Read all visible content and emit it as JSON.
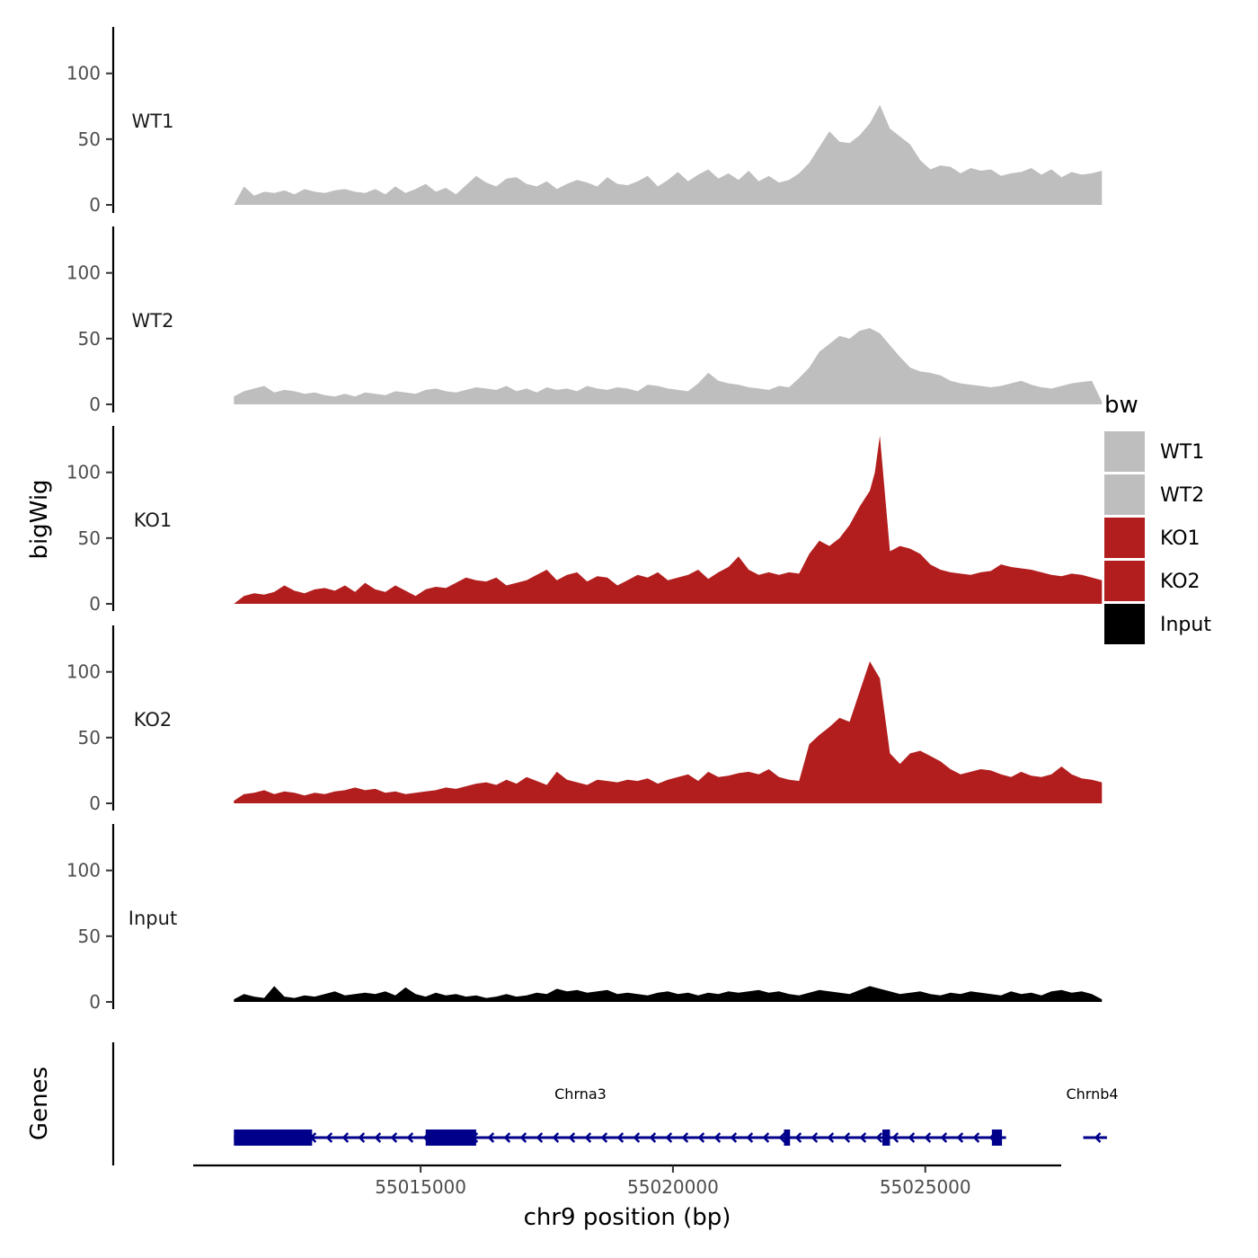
{
  "chart_data": {
    "type": "area",
    "ylabel": "bigWig",
    "xlabel": "chr9 position (bp)",
    "genes_panel_label": "Genes",
    "x_range": [
      55011300,
      55028500
    ],
    "ylim": [
      0,
      135
    ],
    "y_ticks": [
      0,
      50,
      100
    ],
    "x_ticks": [
      55015000,
      55020000,
      55025000
    ],
    "legend": {
      "title": "bw",
      "entries": [
        {
          "name": "WT1",
          "color": "#bebebe"
        },
        {
          "name": "WT2",
          "color": "#bebebe"
        },
        {
          "name": "KO1",
          "color": "#b21e1e"
        },
        {
          "name": "KO2",
          "color": "#b21e1e"
        },
        {
          "name": "Input",
          "color": "#000000"
        }
      ]
    },
    "tracks": [
      {
        "name": "WT1",
        "color": "#bebebe",
        "x": [
          55011300,
          55011500,
          55011700,
          55011900,
          55012100,
          55012300,
          55012500,
          55012700,
          55012900,
          55013100,
          55013300,
          55013500,
          55013700,
          55013900,
          55014100,
          55014300,
          55014500,
          55014700,
          55014900,
          55015100,
          55015300,
          55015500,
          55015700,
          55015900,
          55016100,
          55016300,
          55016500,
          55016700,
          55016900,
          55017100,
          55017300,
          55017500,
          55017700,
          55017900,
          55018100,
          55018300,
          55018500,
          55018700,
          55018900,
          55019100,
          55019300,
          55019500,
          55019700,
          55019900,
          55020100,
          55020300,
          55020500,
          55020700,
          55020900,
          55021100,
          55021300,
          55021500,
          55021700,
          55021900,
          55022100,
          55022300,
          55022500,
          55022700,
          55022900,
          55023100,
          55023300,
          55023500,
          55023700,
          55023900,
          55024100,
          55024300,
          55024500,
          55024700,
          55024900,
          55025100,
          55025300,
          55025500,
          55025700,
          55025900,
          55026100,
          55026300,
          55026500,
          55026700,
          55026900,
          55027100,
          55027300,
          55027500,
          55027700,
          55027900,
          55028100,
          55028300,
          55028500
        ],
        "values": [
          0,
          14,
          7,
          10,
          9,
          11,
          8,
          12,
          10,
          9,
          11,
          12,
          10,
          9,
          12,
          8,
          14,
          9,
          12,
          16,
          10,
          13,
          8,
          15,
          22,
          17,
          14,
          20,
          21,
          16,
          14,
          18,
          12,
          16,
          19,
          17,
          14,
          21,
          16,
          15,
          18,
          22,
          14,
          19,
          25,
          18,
          23,
          27,
          20,
          24,
          19,
          26,
          18,
          22,
          17,
          19,
          24,
          32,
          44,
          56,
          48,
          47,
          53,
          62,
          76,
          58,
          52,
          46,
          34,
          27,
          30,
          29,
          24,
          28,
          26,
          27,
          22,
          24,
          25,
          28,
          23,
          27,
          21,
          25,
          23,
          24,
          26
        ]
      },
      {
        "name": "WT2",
        "color": "#bebebe",
        "x": [
          55011300,
          55011500,
          55011700,
          55011900,
          55012100,
          55012300,
          55012500,
          55012700,
          55012900,
          55013100,
          55013300,
          55013500,
          55013700,
          55013900,
          55014100,
          55014300,
          55014500,
          55014700,
          55014900,
          55015100,
          55015300,
          55015500,
          55015700,
          55015900,
          55016100,
          55016300,
          55016500,
          55016700,
          55016900,
          55017100,
          55017300,
          55017500,
          55017700,
          55017900,
          55018100,
          55018300,
          55018500,
          55018700,
          55018900,
          55019100,
          55019300,
          55019500,
          55019700,
          55019900,
          55020100,
          55020300,
          55020500,
          55020700,
          55020900,
          55021100,
          55021300,
          55021500,
          55021700,
          55021900,
          55022100,
          55022300,
          55022500,
          55022700,
          55022900,
          55023100,
          55023300,
          55023500,
          55023700,
          55023900,
          55024100,
          55024300,
          55024500,
          55024700,
          55024900,
          55025100,
          55025300,
          55025500,
          55025700,
          55025900,
          55026100,
          55026300,
          55026500,
          55026700,
          55026900,
          55027100,
          55027300,
          55027500,
          55027700,
          55027900,
          55028100,
          55028300,
          55028500
        ],
        "values": [
          6,
          10,
          12,
          14,
          9,
          11,
          10,
          8,
          9,
          7,
          6,
          8,
          6,
          9,
          8,
          7,
          10,
          9,
          8,
          11,
          12,
          10,
          9,
          11,
          13,
          12,
          11,
          14,
          10,
          12,
          9,
          13,
          11,
          12,
          10,
          14,
          12,
          11,
          13,
          12,
          10,
          15,
          14,
          12,
          11,
          10,
          16,
          24,
          18,
          16,
          15,
          13,
          12,
          11,
          14,
          13,
          20,
          28,
          40,
          46,
          52,
          50,
          56,
          58,
          54,
          45,
          36,
          28,
          25,
          24,
          22,
          18,
          16,
          15,
          14,
          13,
          14,
          16,
          18,
          15,
          13,
          12,
          14,
          16,
          17,
          18,
          2
        ]
      },
      {
        "name": "KO1",
        "color": "#b21e1e",
        "x": [
          55011300,
          55011500,
          55011700,
          55011900,
          55012100,
          55012300,
          55012500,
          55012700,
          55012900,
          55013100,
          55013300,
          55013500,
          55013700,
          55013900,
          55014100,
          55014300,
          55014500,
          55014700,
          55014900,
          55015100,
          55015300,
          55015500,
          55015700,
          55015900,
          55016100,
          55016300,
          55016500,
          55016700,
          55016900,
          55017100,
          55017300,
          55017500,
          55017700,
          55017900,
          55018100,
          55018300,
          55018500,
          55018700,
          55018900,
          55019100,
          55019300,
          55019500,
          55019700,
          55019900,
          55020100,
          55020300,
          55020500,
          55020700,
          55020900,
          55021100,
          55021300,
          55021500,
          55021700,
          55021900,
          55022100,
          55022300,
          55022500,
          55022700,
          55022900,
          55023100,
          55023300,
          55023500,
          55023700,
          55023900,
          55024000,
          55024100,
          55024300,
          55024500,
          55024700,
          55024900,
          55025100,
          55025300,
          55025500,
          55025700,
          55025900,
          55026100,
          55026300,
          55026500,
          55026700,
          55026900,
          55027100,
          55027300,
          55027500,
          55027700,
          55027900,
          55028100,
          55028300,
          55028500
        ],
        "values": [
          0,
          6,
          8,
          7,
          9,
          14,
          10,
          8,
          11,
          12,
          10,
          14,
          9,
          16,
          11,
          9,
          14,
          10,
          6,
          11,
          13,
          12,
          16,
          20,
          18,
          17,
          20,
          14,
          16,
          18,
          22,
          26,
          18,
          22,
          24,
          17,
          21,
          20,
          14,
          18,
          22,
          20,
          24,
          18,
          20,
          22,
          26,
          19,
          24,
          28,
          36,
          26,
          22,
          24,
          22,
          24,
          23,
          38,
          48,
          44,
          50,
          60,
          74,
          86,
          100,
          128,
          40,
          44,
          42,
          38,
          30,
          26,
          24,
          23,
          22,
          24,
          25,
          30,
          28,
          27,
          26,
          24,
          22,
          21,
          23,
          22,
          20,
          18
        ]
      },
      {
        "name": "KO2",
        "color": "#b21e1e",
        "x": [
          55011300,
          55011500,
          55011700,
          55011900,
          55012100,
          55012300,
          55012500,
          55012700,
          55012900,
          55013100,
          55013300,
          55013500,
          55013700,
          55013900,
          55014100,
          55014300,
          55014500,
          55014700,
          55014900,
          55015100,
          55015300,
          55015500,
          55015700,
          55015900,
          55016100,
          55016300,
          55016500,
          55016700,
          55016900,
          55017100,
          55017300,
          55017500,
          55017700,
          55017900,
          55018100,
          55018300,
          55018500,
          55018700,
          55018900,
          55019100,
          55019300,
          55019500,
          55019700,
          55019900,
          55020100,
          55020300,
          55020500,
          55020700,
          55020900,
          55021100,
          55021300,
          55021500,
          55021700,
          55021900,
          55022100,
          55022300,
          55022500,
          55022700,
          55022900,
          55023100,
          55023300,
          55023500,
          55023700,
          55023900,
          55024100,
          55024300,
          55024500,
          55024700,
          55024900,
          55025100,
          55025300,
          55025500,
          55025700,
          55025900,
          55026100,
          55026300,
          55026500,
          55026700,
          55026900,
          55027100,
          55027300,
          55027500,
          55027700,
          55027900,
          55028100,
          55028300,
          55028500
        ],
        "values": [
          2,
          7,
          8,
          10,
          7,
          9,
          8,
          6,
          8,
          7,
          9,
          10,
          12,
          10,
          11,
          8,
          9,
          7,
          8,
          9,
          10,
          12,
          11,
          13,
          15,
          16,
          14,
          18,
          15,
          20,
          17,
          14,
          24,
          18,
          16,
          14,
          18,
          17,
          16,
          18,
          17,
          19,
          15,
          18,
          20,
          22,
          17,
          24,
          20,
          21,
          23,
          24,
          22,
          26,
          20,
          18,
          17,
          45,
          52,
          58,
          65,
          62,
          85,
          108,
          95,
          38,
          30,
          38,
          40,
          36,
          32,
          26,
          22,
          24,
          26,
          25,
          22,
          20,
          24,
          21,
          20,
          22,
          28,
          22,
          19,
          18,
          16
        ]
      },
      {
        "name": "Input",
        "color": "#000000",
        "x": [
          55011300,
          55011500,
          55011700,
          55011900,
          55012100,
          55012300,
          55012500,
          55012700,
          55012900,
          55013100,
          55013300,
          55013500,
          55013700,
          55013900,
          55014100,
          55014300,
          55014500,
          55014700,
          55014900,
          55015100,
          55015300,
          55015500,
          55015700,
          55015900,
          55016100,
          55016300,
          55016500,
          55016700,
          55016900,
          55017100,
          55017300,
          55017500,
          55017700,
          55017900,
          55018100,
          55018300,
          55018500,
          55018700,
          55018900,
          55019100,
          55019300,
          55019500,
          55019700,
          55019900,
          55020100,
          55020300,
          55020500,
          55020700,
          55020900,
          55021100,
          55021300,
          55021500,
          55021700,
          55021900,
          55022100,
          55022300,
          55022500,
          55022700,
          55022900,
          55023100,
          55023300,
          55023500,
          55023700,
          55023900,
          55024100,
          55024300,
          55024500,
          55024700,
          55024900,
          55025100,
          55025300,
          55025500,
          55025700,
          55025900,
          55026100,
          55026300,
          55026500,
          55026700,
          55026900,
          55027100,
          55027300,
          55027500,
          55027700,
          55027900,
          55028100,
          55028300,
          55028500
        ],
        "values": [
          2,
          6,
          4,
          3,
          12,
          4,
          3,
          5,
          4,
          6,
          8,
          5,
          6,
          7,
          6,
          8,
          5,
          11,
          6,
          4,
          7,
          5,
          6,
          4,
          5,
          3,
          4,
          6,
          4,
          5,
          7,
          6,
          10,
          8,
          9,
          7,
          8,
          9,
          6,
          7,
          6,
          5,
          7,
          8,
          6,
          7,
          5,
          7,
          6,
          8,
          7,
          8,
          9,
          7,
          8,
          6,
          5,
          7,
          9,
          8,
          7,
          6,
          9,
          12,
          10,
          8,
          6,
          7,
          8,
          6,
          5,
          7,
          6,
          8,
          7,
          6,
          5,
          8,
          6,
          7,
          5,
          8,
          9,
          7,
          8,
          6,
          2
        ]
      }
    ],
    "genes": [
      {
        "name": "Chrna3",
        "start": 55011300,
        "end": 55026600,
        "strand": "-",
        "exons": [
          [
            55011300,
            55012850
          ],
          [
            55015100,
            55016100
          ],
          [
            55022200,
            55022320
          ],
          [
            55024150,
            55024300
          ],
          [
            55026320,
            55026520
          ]
        ]
      },
      {
        "name": "Chrnb4",
        "start": 55028130,
        "end": 55028600,
        "strand": "-",
        "exons": []
      }
    ],
    "gene_color": "#00008b"
  }
}
